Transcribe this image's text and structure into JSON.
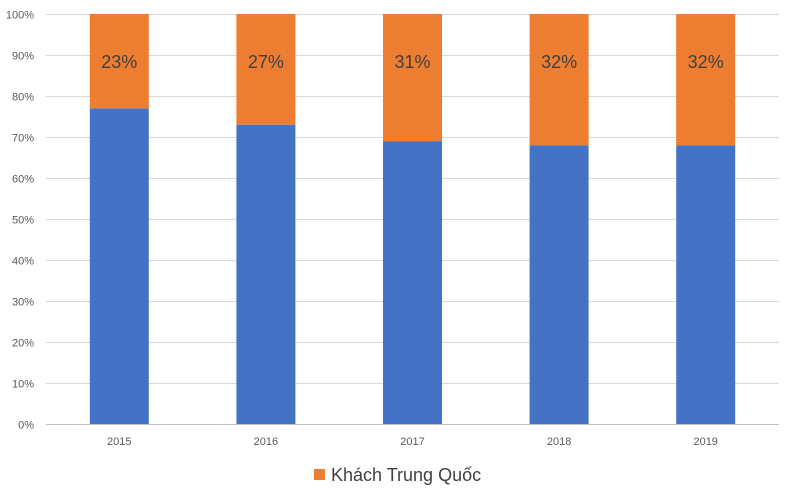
{
  "chart_data": {
    "type": "bar",
    "stacked": true,
    "title": "",
    "xlabel": "",
    "ylabel": "",
    "categories": [
      "2015",
      "2016",
      "2017",
      "2018",
      "2019"
    ],
    "ylim": [
      0,
      100
    ],
    "y_ticks": [
      "0%",
      "10%",
      "20%",
      "30%",
      "40%",
      "50%",
      "60%",
      "70%",
      "80%",
      "90%",
      "100%"
    ],
    "grid": true,
    "legend": {
      "position": "bottom"
    },
    "series": [
      {
        "values": [
          77,
          73,
          69,
          68,
          68
        ],
        "color": "#4472C4"
      },
      {
        "name": "Khách Trung Quốc",
        "values": [
          23,
          27,
          31,
          32,
          32
        ],
        "labels": [
          "23%",
          "27%",
          "31%",
          "32%",
          "32%"
        ],
        "color": "#ED7D31"
      }
    ]
  }
}
